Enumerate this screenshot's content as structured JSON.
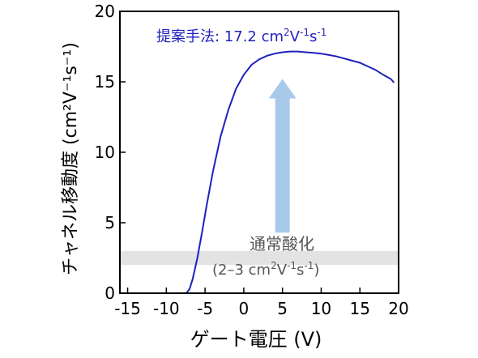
{
  "chart_data": {
    "type": "line",
    "xlabel": "ゲート電圧 (V)",
    "ylabel": "チャネル移動度 (cm²V⁻¹s⁻¹)",
    "xlim": [
      -16,
      20
    ],
    "ylim": [
      0,
      20
    ],
    "x_ticks": [
      "-15",
      "-10",
      "-5",
      "0",
      "5",
      "10",
      "15",
      "20"
    ],
    "y_ticks": [
      "0",
      "5",
      "10",
      "15",
      "20"
    ],
    "series": [
      {
        "color": "#1f1fbf",
        "x": [
          -16,
          -8,
          -7.4,
          -7.0,
          -6.6,
          -6.0,
          -5.4,
          -4.8,
          -4.0,
          -3.0,
          -2.0,
          -1.0,
          0.0,
          1.0,
          2.0,
          3.0,
          4.0,
          5.0,
          6.0,
          7.0,
          8.0,
          9.0,
          10.0,
          11.0,
          12.0,
          13.0,
          14.0,
          15.0,
          16.0,
          17.0,
          18.0,
          19.0,
          19.4
        ],
        "y": [
          0,
          0,
          0.02,
          0.3,
          1.0,
          2.5,
          4.3,
          6.2,
          8.6,
          11.1,
          13.0,
          14.5,
          15.5,
          16.2,
          16.6,
          16.85,
          17.0,
          17.1,
          17.15,
          17.15,
          17.1,
          17.05,
          17.0,
          16.9,
          16.8,
          16.65,
          16.5,
          16.35,
          16.1,
          15.85,
          15.5,
          15.2,
          14.95
        ]
      }
    ],
    "annotations": {
      "proposed": {
        "prefix": "提案手法: 17.2 cm",
        "sup1": "2",
        "mid": "V",
        "sup2": "-1",
        "s": "s",
        "sup3": "-1",
        "color": "#1f1fbf"
      },
      "arrow": {
        "from_y": 4.3,
        "to_y": 15.2,
        "at_x": 5.0,
        "color": "#a9c9ea"
      },
      "band": {
        "y_range": [
          2,
          3
        ],
        "color": "#e3e3e3"
      },
      "oxidation": {
        "label": "通常酸化",
        "range_prefix": "(2–3 cm",
        "sup1": "2",
        "mid": "V",
        "sup2": "-1",
        "s": "s",
        "sup3": "-1",
        "close": ")",
        "color": "#555555"
      }
    }
  }
}
